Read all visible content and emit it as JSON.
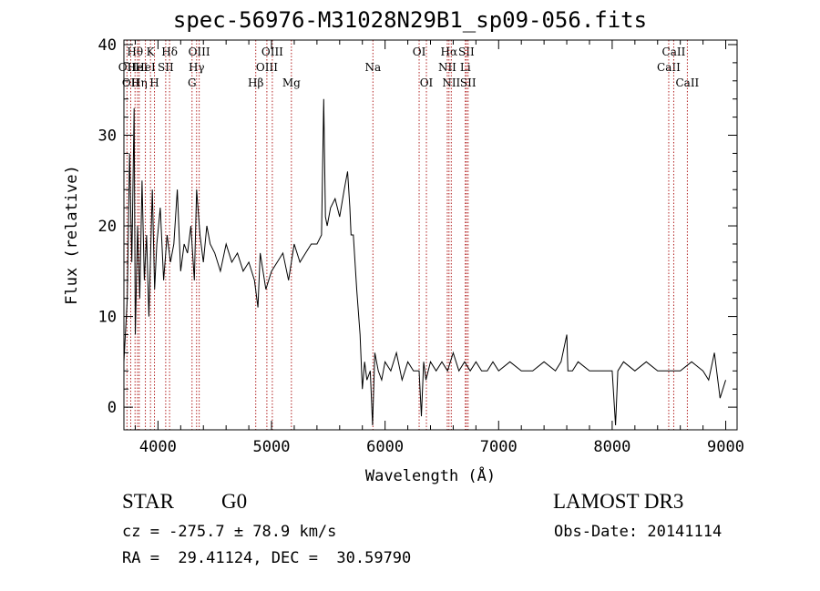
{
  "chart_data": {
    "type": "line",
    "title": "spec-56976-M31028N29B1_sp09-056.fits",
    "xlabel": "Wavelength (Å)",
    "ylabel": "Flux (relative)",
    "xlim": [
      3700,
      9100
    ],
    "ylim": [
      -2.5,
      40.5
    ],
    "xticks": [
      4000,
      5000,
      6000,
      7000,
      8000,
      9000
    ],
    "xtick_labels": [
      "4000",
      "5000",
      "6000",
      "7000",
      "8000",
      "9000"
    ],
    "yticks": [
      0,
      10,
      20,
      30,
      40
    ],
    "ytick_labels": [
      "0",
      "10",
      "20",
      "30",
      "40"
    ],
    "grid": false,
    "series": [
      {
        "name": "spectrum",
        "x": [
          3700,
          3730,
          3750,
          3770,
          3790,
          3800,
          3820,
          3840,
          3860,
          3880,
          3900,
          3920,
          3950,
          3970,
          3990,
          4020,
          4050,
          4080,
          4110,
          4140,
          4170,
          4200,
          4230,
          4260,
          4290,
          4320,
          4340,
          4370,
          4400,
          4430,
          4460,
          4500,
          4550,
          4600,
          4650,
          4700,
          4750,
          4800,
          4850,
          4880,
          4900,
          4950,
          5000,
          5050,
          5100,
          5150,
          5200,
          5250,
          5300,
          5350,
          5400,
          5440,
          5460,
          5475,
          5490,
          5520,
          5560,
          5600,
          5640,
          5670,
          5690,
          5700,
          5720,
          5750,
          5780,
          5800,
          5820,
          5840,
          5870,
          5890,
          5910,
          5940,
          5970,
          6000,
          6050,
          6100,
          6150,
          6200,
          6250,
          6300,
          6320,
          6340,
          6360,
          6400,
          6450,
          6500,
          6550,
          6600,
          6650,
          6700,
          6750,
          6800,
          6850,
          6900,
          6950,
          7000,
          7100,
          7200,
          7300,
          7400,
          7500,
          7550,
          7600,
          7610,
          7650,
          7700,
          7800,
          7900,
          8000,
          8030,
          8050,
          8100,
          8200,
          8300,
          8400,
          8500,
          8600,
          8700,
          8800,
          8850,
          8900,
          8950,
          9000
        ],
        "y": [
          5,
          12,
          28,
          16,
          33,
          8,
          20,
          12,
          25,
          14,
          19,
          10,
          24,
          13,
          18,
          22,
          14,
          19,
          16,
          18,
          24,
          15,
          18,
          17,
          20,
          14,
          24,
          19,
          16,
          20,
          18,
          17,
          15,
          18,
          16,
          17,
          15,
          16,
          14,
          11,
          17,
          13,
          15,
          16,
          17,
          14,
          18,
          16,
          17,
          18,
          18,
          19,
          34,
          21,
          20,
          22,
          23,
          21,
          24,
          26,
          22,
          19,
          19,
          13,
          8,
          2,
          5,
          3,
          4,
          -2,
          6,
          4,
          3,
          5,
          4,
          6,
          3,
          5,
          4,
          4,
          -1,
          5,
          3,
          5,
          4,
          5,
          4,
          6,
          4,
          5,
          4,
          5,
          4,
          4,
          5,
          4,
          5,
          4,
          4,
          5,
          4,
          5,
          8,
          4,
          4,
          5,
          4,
          4,
          4,
          -2,
          4,
          5,
          4,
          5,
          4,
          4,
          4,
          5,
          4,
          3,
          6,
          1,
          3
        ]
      }
    ],
    "line_markers": [
      {
        "wavelength": 3727,
        "label": "OII",
        "row": 2
      },
      {
        "wavelength": 3760,
        "label": "OII",
        "row": 3
      },
      {
        "wavelength": 3798,
        "label": "Hθ",
        "row": 1
      },
      {
        "wavelength": 3820,
        "label": "HeI",
        "row": 2
      },
      {
        "wavelength": 3835,
        "label": "Hη",
        "row": 3
      },
      {
        "wavelength": 3889,
        "label": "HeI",
        "row": 2
      },
      {
        "wavelength": 3934,
        "label": "K",
        "row": 1
      },
      {
        "wavelength": 3969,
        "label": "H",
        "row": 3
      },
      {
        "wavelength": 4068,
        "label": "SII",
        "row": 2
      },
      {
        "wavelength": 4102,
        "label": "Hδ",
        "row": 1
      },
      {
        "wavelength": 4300,
        "label": "G",
        "row": 3
      },
      {
        "wavelength": 4340,
        "label": "Hγ",
        "row": 2
      },
      {
        "wavelength": 4363,
        "label": "OIII",
        "row": 1
      },
      {
        "wavelength": 4861,
        "label": "Hβ",
        "row": 3
      },
      {
        "wavelength": 4959,
        "label": "OIII",
        "row": 2
      },
      {
        "wavelength": 5007,
        "label": "OIII",
        "row": 1
      },
      {
        "wavelength": 5175,
        "label": "Mg",
        "row": 3
      },
      {
        "wavelength": 5893,
        "label": "Na",
        "row": 2
      },
      {
        "wavelength": 6300,
        "label": "OI",
        "row": 1
      },
      {
        "wavelength": 6364,
        "label": "OI",
        "row": 3
      },
      {
        "wavelength": 6548,
        "label": "NII",
        "row": 2
      },
      {
        "wavelength": 6563,
        "label": "Hα",
        "row": 1
      },
      {
        "wavelength": 6583,
        "label": "NII",
        "row": 3
      },
      {
        "wavelength": 6707,
        "label": "Li",
        "row": 2
      },
      {
        "wavelength": 6716,
        "label": "SII",
        "row": 1
      },
      {
        "wavelength": 6731,
        "label": "SII",
        "row": 3
      },
      {
        "wavelength": 8498,
        "label": "CaII",
        "row": 2
      },
      {
        "wavelength": 8542,
        "label": "CaII",
        "row": 1
      },
      {
        "wavelength": 8662,
        "label": "CaII",
        "row": 3
      }
    ]
  },
  "info": {
    "object_type": "STAR",
    "subclass": "G0",
    "survey": "LAMOST DR3",
    "cz": "cz = -275.7 ± 78.9 km/s",
    "obs_date": "Obs-Date: 20141114",
    "radec": "RA =  29.41124, DEC =  30.59790"
  },
  "colors": {
    "axis": "#000000",
    "spectrum": "#000000",
    "marker": "#b22222"
  }
}
